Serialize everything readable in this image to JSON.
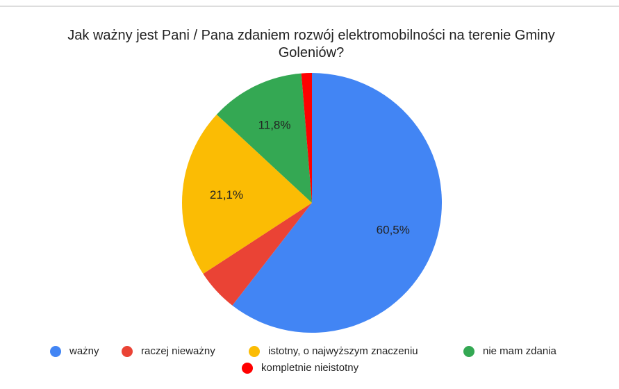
{
  "chart_data": {
    "type": "pie",
    "title": "Jak ważny jest Pani / Pana zdaniem rozwój elektromobilności na terenie Gminy Goleniów?",
    "categories": [
      "ważny",
      "raczej nieważny",
      "istotny, o najwyższym znaczeniu",
      "nie mam zdania",
      "kompletnie nieistotny"
    ],
    "values": [
      60.5,
      5.3,
      21.1,
      11.8,
      1.3
    ],
    "value_labels": [
      "60,5%",
      null,
      "21,1%",
      "11,8%",
      null
    ],
    "colors": [
      "#4285f4",
      "#ea4335",
      "#fbbc04",
      "#34a853",
      "#ff0000"
    ],
    "legend": "bottom"
  }
}
